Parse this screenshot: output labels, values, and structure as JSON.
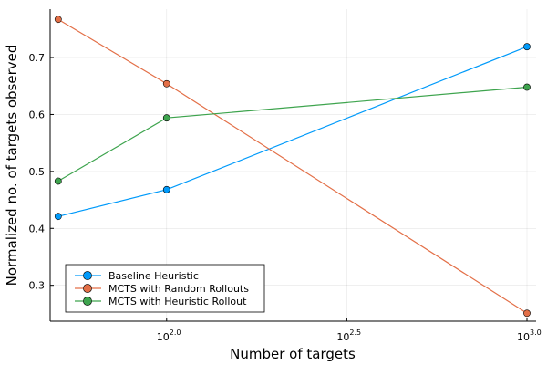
{
  "chart_data": {
    "type": "line",
    "title": "",
    "xlabel": "Number of targets",
    "ylabel": "Normalized no. of targets observed",
    "xscale": "log10",
    "x": [
      50,
      100,
      1000
    ],
    "xlim": [
      47.5,
      1060
    ],
    "ylim": [
      0.237,
      0.785
    ],
    "xticks": [
      {
        "value": 100,
        "base": "10",
        "exp": "2.0"
      },
      {
        "value": 316.2278,
        "base": "10",
        "exp": "2.5"
      },
      {
        "value": 1000,
        "base": "10",
        "exp": "3.0"
      }
    ],
    "yticks": [
      {
        "value": 0.3,
        "label": "0.3"
      },
      {
        "value": 0.4,
        "label": "0.4"
      },
      {
        "value": 0.5,
        "label": "0.5"
      },
      {
        "value": 0.6,
        "label": "0.6"
      },
      {
        "value": 0.7,
        "label": "0.7"
      }
    ],
    "grid": true,
    "legend_position": "bottom-left",
    "series": [
      {
        "name": "Baseline Heuristic",
        "color": "#009AFA",
        "values": [
          0.421,
          0.468,
          0.719
        ]
      },
      {
        "name": "MCTS with Random Rollouts",
        "color": "#E36F47",
        "values": [
          0.767,
          0.654,
          0.251
        ]
      },
      {
        "name": "MCTS with Heuristic Rollout",
        "color": "#3EA44E",
        "values": [
          0.483,
          0.594,
          0.648
        ]
      }
    ]
  }
}
